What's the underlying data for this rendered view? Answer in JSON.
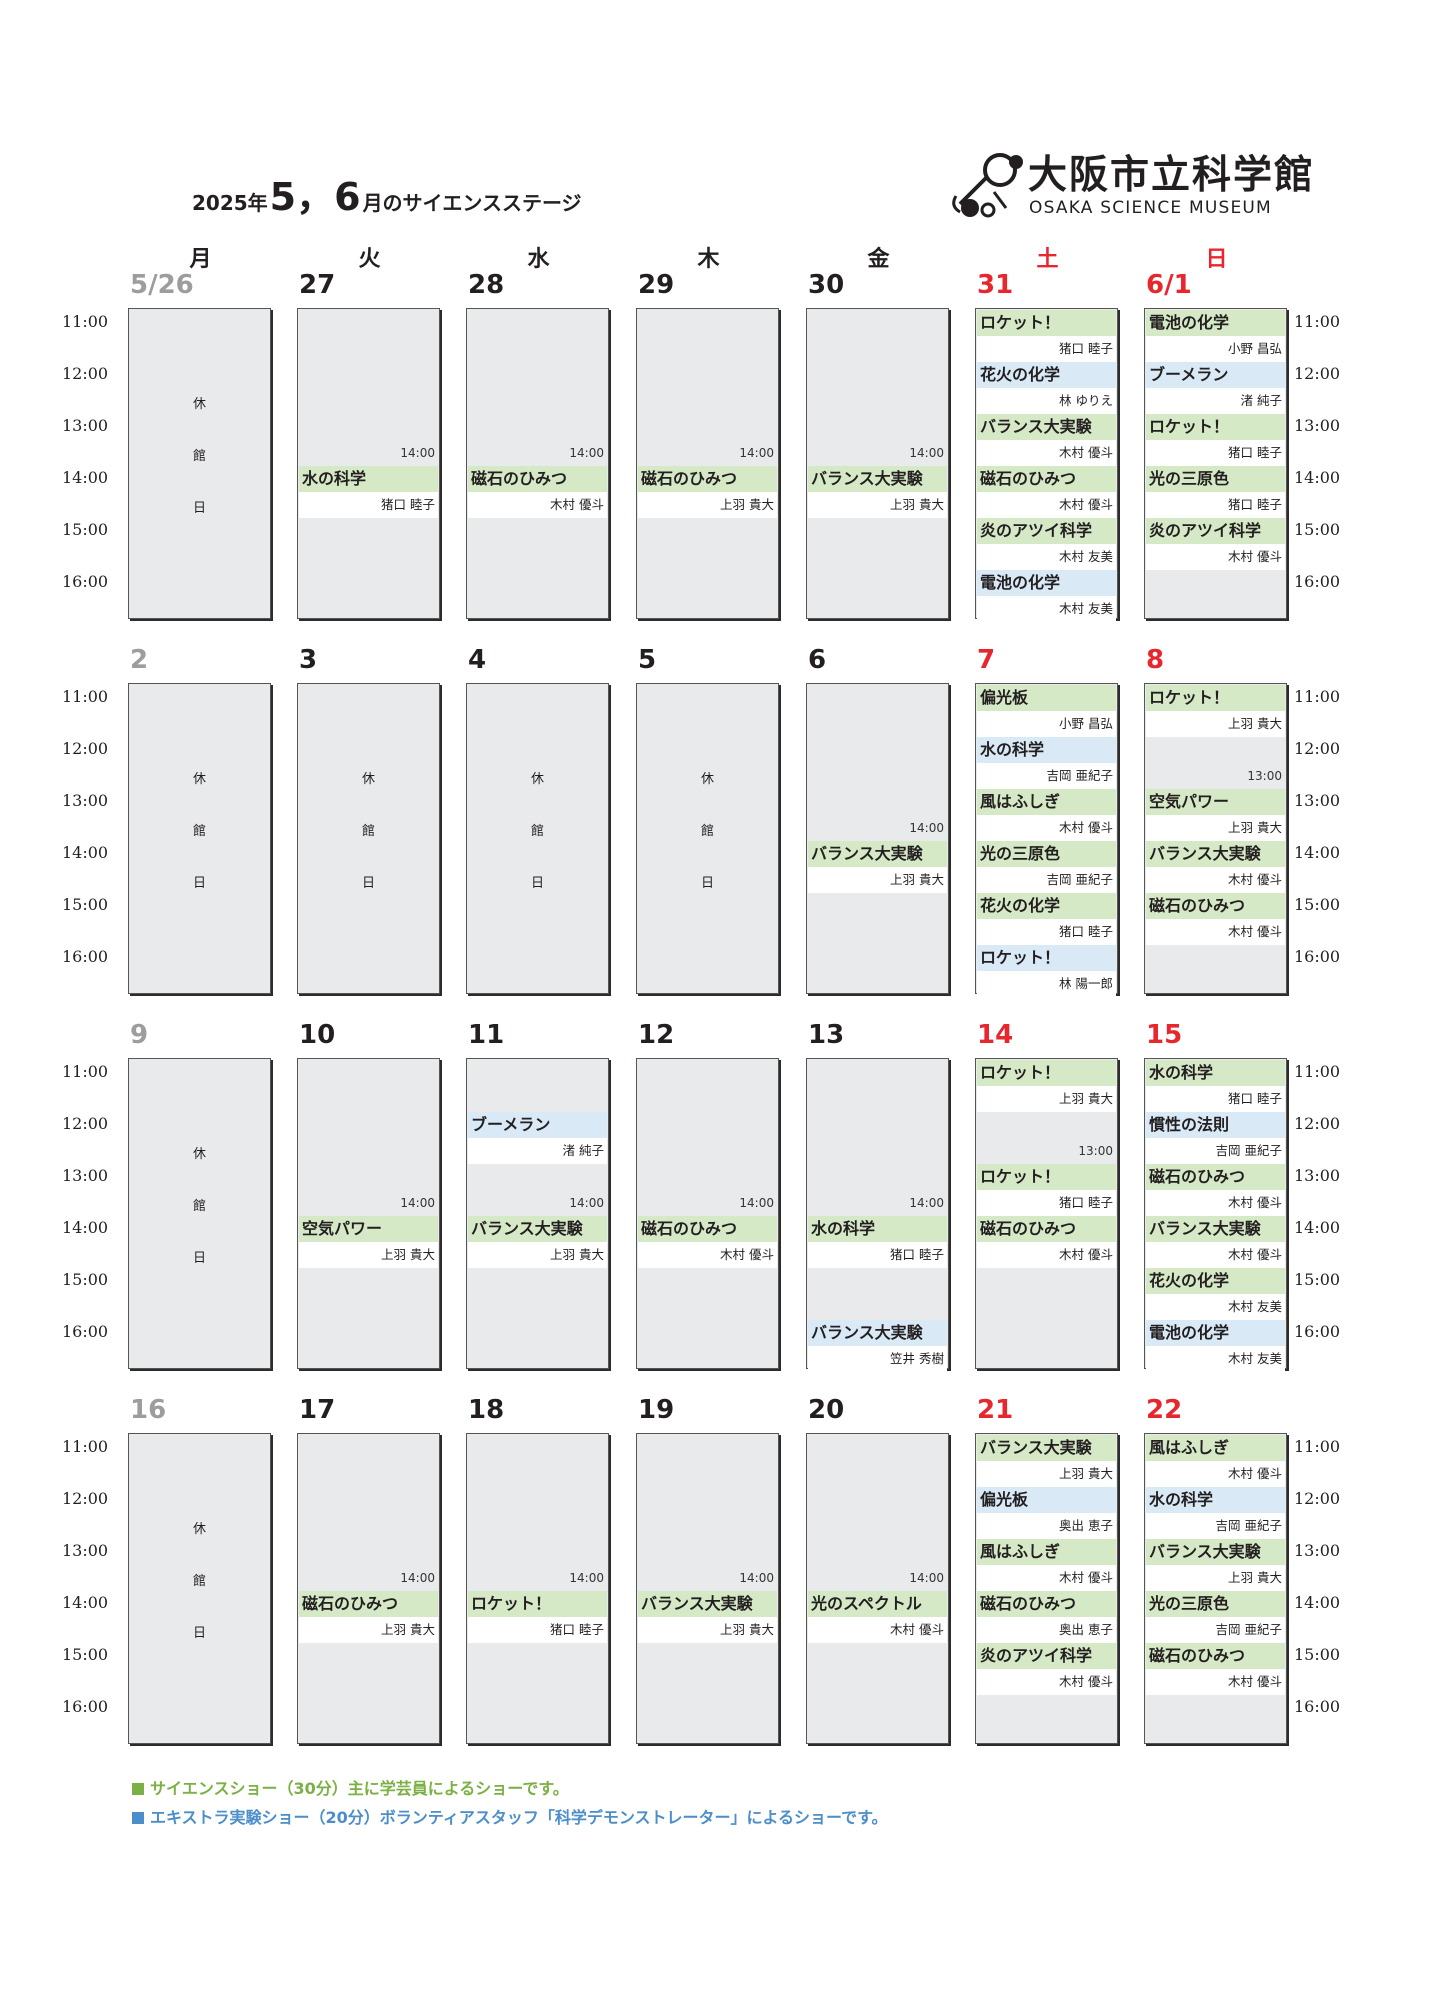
{
  "title": {
    "year": "2025年",
    "months": "5，6",
    "rest": "月のサイエンスステージ"
  },
  "logo": {
    "name": "大阪市立科学館",
    "subtitle": "OSAKA SCIENCE MUSEUM"
  },
  "weekdays": [
    {
      "label": "月",
      "holiday": false
    },
    {
      "label": "火",
      "holiday": false
    },
    {
      "label": "水",
      "holiday": false
    },
    {
      "label": "木",
      "holiday": false
    },
    {
      "label": "金",
      "holiday": false
    },
    {
      "label": "土",
      "holiday": true
    },
    {
      "label": "日",
      "holiday": true
    }
  ],
  "time_labels": [
    "11:00",
    "12:00",
    "13:00",
    "14:00",
    "15:00",
    "16:00"
  ],
  "closed_text": [
    "休",
    "館",
    "日"
  ],
  "colors": {
    "science_show": "#d6e9c7",
    "extra_show": "#d9eaf6",
    "holiday_text": "#e8262e",
    "closed_day_text": "#9d9d9d"
  },
  "weeks": [
    {
      "days": [
        {
          "date": "5/26",
          "style": "gray",
          "closed": true
        },
        {
          "date": "27",
          "style": "normal",
          "slots": [
            {
              "hour": 14,
              "title": "水の科学",
              "presenter": "猪口 睦子",
              "type": "green",
              "time_label": "14:00"
            }
          ]
        },
        {
          "date": "28",
          "style": "normal",
          "slots": [
            {
              "hour": 14,
              "title": "磁石のひみつ",
              "presenter": "木村 優斗",
              "type": "green",
              "time_label": "14:00"
            }
          ]
        },
        {
          "date": "29",
          "style": "normal",
          "slots": [
            {
              "hour": 14,
              "title": "磁石のひみつ",
              "presenter": "上羽 貴大",
              "type": "green",
              "time_label": "14:00"
            }
          ]
        },
        {
          "date": "30",
          "style": "normal",
          "slots": [
            {
              "hour": 14,
              "title": "バランス大実験",
              "presenter": "上羽 貴大",
              "type": "green",
              "time_label": "14:00"
            }
          ]
        },
        {
          "date": "31",
          "style": "red",
          "slots": [
            {
              "hour": 11,
              "title": "ロケット！",
              "presenter": "猪口 睦子",
              "type": "green"
            },
            {
              "hour": 12,
              "title": "花火の化学",
              "presenter": "林 ゆりえ",
              "type": "blue"
            },
            {
              "hour": 13,
              "title": "バランス大実験",
              "presenter": "木村 優斗",
              "type": "green"
            },
            {
              "hour": 14,
              "title": "磁石のひみつ",
              "presenter": "木村 優斗",
              "type": "green"
            },
            {
              "hour": 15,
              "title": "炎のアツイ科学",
              "presenter": "木村 友美",
              "type": "green"
            },
            {
              "hour": 16,
              "title": "電池の化学",
              "presenter": "木村 友美",
              "type": "blue"
            }
          ]
        },
        {
          "date": "6/1",
          "style": "red",
          "slots": [
            {
              "hour": 11,
              "title": "電池の化学",
              "presenter": "小野 昌弘",
              "type": "green"
            },
            {
              "hour": 12,
              "title": "ブーメラン",
              "presenter": "渚 純子",
              "type": "blue"
            },
            {
              "hour": 13,
              "title": "ロケット！",
              "presenter": "猪口 睦子",
              "type": "green"
            },
            {
              "hour": 14,
              "title": "光の三原色",
              "presenter": "猪口 睦子",
              "type": "green"
            },
            {
              "hour": 15,
              "title": "炎のアツイ科学",
              "presenter": "木村 優斗",
              "type": "green"
            }
          ]
        }
      ]
    },
    {
      "days": [
        {
          "date": "2",
          "style": "gray",
          "closed": true
        },
        {
          "date": "3",
          "style": "normal",
          "closed": true
        },
        {
          "date": "4",
          "style": "normal",
          "closed": true
        },
        {
          "date": "5",
          "style": "normal",
          "closed": true
        },
        {
          "date": "6",
          "style": "normal",
          "slots": [
            {
              "hour": 14,
              "title": "バランス大実験",
              "presenter": "上羽 貴大",
              "type": "green",
              "time_label": "14:00"
            }
          ]
        },
        {
          "date": "7",
          "style": "red",
          "slots": [
            {
              "hour": 11,
              "title": "偏光板",
              "presenter": "小野 昌弘",
              "type": "green"
            },
            {
              "hour": 12,
              "title": "水の科学",
              "presenter": "吉岡 亜紀子",
              "type": "blue"
            },
            {
              "hour": 13,
              "title": "風はふしぎ",
              "presenter": "木村 優斗",
              "type": "green"
            },
            {
              "hour": 14,
              "title": "光の三原色",
              "presenter": "吉岡 亜紀子",
              "type": "green"
            },
            {
              "hour": 15,
              "title": "花火の化学",
              "presenter": "猪口 睦子",
              "type": "green"
            },
            {
              "hour": 16,
              "title": "ロケット！",
              "presenter": "林 陽一郎",
              "type": "blue"
            }
          ]
        },
        {
          "date": "8",
          "style": "red",
          "slots": [
            {
              "hour": 11,
              "title": "ロケット！",
              "presenter": "上羽 貴大",
              "type": "green"
            },
            {
              "hour": 13,
              "title": "空気パワー",
              "presenter": "上羽 貴大",
              "type": "green",
              "time_label": "13:00"
            },
            {
              "hour": 14,
              "title": "バランス大実験",
              "presenter": "木村 優斗",
              "type": "green"
            },
            {
              "hour": 15,
              "title": "磁石のひみつ",
              "presenter": "木村 優斗",
              "type": "green"
            }
          ]
        }
      ]
    },
    {
      "days": [
        {
          "date": "9",
          "style": "gray",
          "closed": true
        },
        {
          "date": "10",
          "style": "normal",
          "slots": [
            {
              "hour": 14,
              "title": "空気パワー",
              "presenter": "上羽 貴大",
              "type": "green",
              "time_label": "14:00"
            }
          ]
        },
        {
          "date": "11",
          "style": "normal",
          "slots": [
            {
              "hour": 12,
              "title": "ブーメラン",
              "presenter": "渚 純子",
              "type": "blue"
            },
            {
              "hour": 14,
              "title": "バランス大実験",
              "presenter": "上羽 貴大",
              "type": "green",
              "time_label": "14:00"
            }
          ]
        },
        {
          "date": "12",
          "style": "normal",
          "slots": [
            {
              "hour": 14,
              "title": "磁石のひみつ",
              "presenter": "木村 優斗",
              "type": "green",
              "time_label": "14:00"
            }
          ]
        },
        {
          "date": "13",
          "style": "normal",
          "slots": [
            {
              "hour": 14,
              "title": "水の科学",
              "presenter": "猪口 睦子",
              "type": "green",
              "time_label": "14:00"
            },
            {
              "hour": 16,
              "title": "バランス大実験",
              "presenter": "笠井 秀樹",
              "type": "blue"
            }
          ]
        },
        {
          "date": "14",
          "style": "red",
          "slots": [
            {
              "hour": 11,
              "title": "ロケット！",
              "presenter": "上羽 貴大",
              "type": "green"
            },
            {
              "hour": 13,
              "title": "ロケット！",
              "presenter": "猪口 睦子",
              "type": "green",
              "time_label": "13:00"
            },
            {
              "hour": 14,
              "title": "磁石のひみつ",
              "presenter": "木村 優斗",
              "type": "green"
            }
          ]
        },
        {
          "date": "15",
          "style": "red",
          "slots": [
            {
              "hour": 11,
              "title": "水の科学",
              "presenter": "猪口 睦子",
              "type": "green"
            },
            {
              "hour": 12,
              "title": "慣性の法則",
              "presenter": "吉岡 亜紀子",
              "type": "blue"
            },
            {
              "hour": 13,
              "title": "磁石のひみつ",
              "presenter": "木村 優斗",
              "type": "green"
            },
            {
              "hour": 14,
              "title": "バランス大実験",
              "presenter": "木村 優斗",
              "type": "green"
            },
            {
              "hour": 15,
              "title": "花火の化学",
              "presenter": "木村 友美",
              "type": "green"
            },
            {
              "hour": 16,
              "title": "電池の化学",
              "presenter": "木村 友美",
              "type": "blue"
            }
          ]
        }
      ]
    },
    {
      "days": [
        {
          "date": "16",
          "style": "gray",
          "closed": true
        },
        {
          "date": "17",
          "style": "normal",
          "slots": [
            {
              "hour": 14,
              "title": "磁石のひみつ",
              "presenter": "上羽 貴大",
              "type": "green",
              "time_label": "14:00"
            }
          ]
        },
        {
          "date": "18",
          "style": "normal",
          "slots": [
            {
              "hour": 14,
              "title": "ロケット！",
              "presenter": "猪口 睦子",
              "type": "green",
              "time_label": "14:00"
            }
          ]
        },
        {
          "date": "19",
          "style": "normal",
          "slots": [
            {
              "hour": 14,
              "title": "バランス大実験",
              "presenter": "上羽 貴大",
              "type": "green",
              "time_label": "14:00"
            }
          ]
        },
        {
          "date": "20",
          "style": "normal",
          "slots": [
            {
              "hour": 14,
              "title": "光のスペクトル",
              "presenter": "木村 優斗",
              "type": "green",
              "time_label": "14:00"
            }
          ]
        },
        {
          "date": "21",
          "style": "red",
          "slots": [
            {
              "hour": 11,
              "title": "バランス大実験",
              "presenter": "上羽 貴大",
              "type": "green"
            },
            {
              "hour": 12,
              "title": "偏光板",
              "presenter": "奥出 恵子",
              "type": "blue"
            },
            {
              "hour": 13,
              "title": "風はふしぎ",
              "presenter": "木村 優斗",
              "type": "green"
            },
            {
              "hour": 14,
              "title": "磁石のひみつ",
              "presenter": "奥出 恵子",
              "type": "green"
            },
            {
              "hour": 15,
              "title": "炎のアツイ科学",
              "presenter": "木村 優斗",
              "type": "green"
            }
          ]
        },
        {
          "date": "22",
          "style": "red",
          "slots": [
            {
              "hour": 11,
              "title": "風はふしぎ",
              "presenter": "木村 優斗",
              "type": "green"
            },
            {
              "hour": 12,
              "title": "水の科学",
              "presenter": "吉岡 亜紀子",
              "type": "blue"
            },
            {
              "hour": 13,
              "title": "バランス大実験",
              "presenter": "上羽 貴大",
              "type": "green"
            },
            {
              "hour": 14,
              "title": "光の三原色",
              "presenter": "吉岡 亜紀子",
              "type": "green"
            },
            {
              "hour": 15,
              "title": "磁石のひみつ",
              "presenter": "木村 優斗",
              "type": "green"
            }
          ]
        }
      ]
    }
  ],
  "legend": [
    {
      "text": "サイエンスショー（30分）主に学芸員によるショーです。",
      "type": "green"
    },
    {
      "text": "エキストラ実験ショー（20分）ボランティアスタッフ「科学デモンストレーター」によるショーです。",
      "type": "blue"
    }
  ]
}
